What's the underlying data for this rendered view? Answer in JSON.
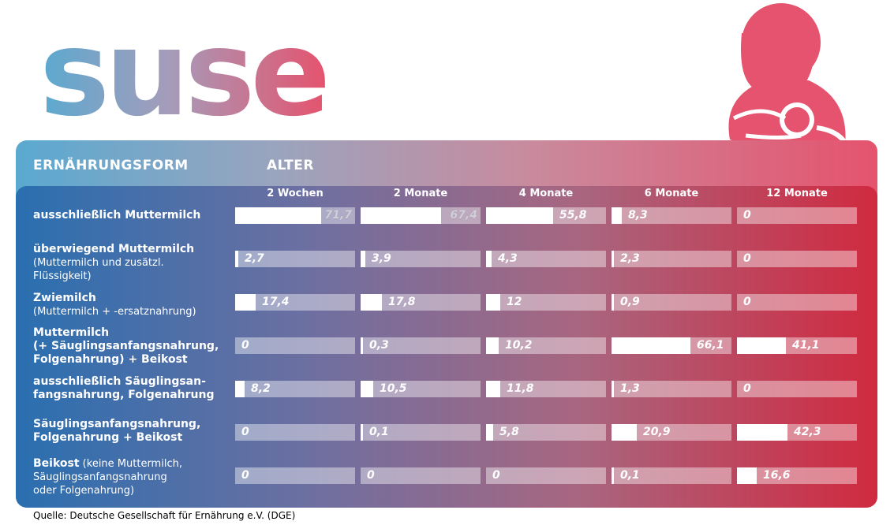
{
  "logo": {
    "text": "suse",
    "gradient_start": "#5aa9d0",
    "gradient_end": "#e5536e"
  },
  "header": {
    "row_title": "ERNÄHRUNGSFORM",
    "col_title": "ALTER"
  },
  "colors": {
    "accent": "#e5536e",
    "dark_left": "#2a6fb0",
    "dark_right": "#d02a40"
  },
  "source": "Quelle: Deutsche Gesellschaft für Ernährung e.V.  (DGE)",
  "chart_data": {
    "type": "table",
    "unit": "%",
    "columns": [
      "2 Wochen",
      "2 Monate",
      "4 Monate",
      "6 Monate",
      "12 Monate"
    ],
    "rows": [
      {
        "title": "ausschließlich Muttermilch",
        "subtitle": "",
        "values": [
          71.7,
          67.4,
          55.8,
          8.3,
          0
        ],
        "labels": [
          "71,7",
          "67,4",
          "55,8",
          "8,3",
          "0"
        ]
      },
      {
        "title": "überwiegend Muttermilch",
        "subtitle": "(Muttermilch und zusätzl. Flüssigkeit)",
        "values": [
          2.7,
          3.9,
          4.3,
          2.3,
          0
        ],
        "labels": [
          "2,7",
          "3,9",
          "4,3",
          "2,3",
          "0"
        ]
      },
      {
        "title": "Zwiemilch",
        "subtitle": "(Muttermilch + -ersatznahrung)",
        "values": [
          17.4,
          17.8,
          12,
          0.9,
          0
        ],
        "labels": [
          "17,4",
          "17,8",
          "12",
          "0,9",
          "0"
        ]
      },
      {
        "title": "Muttermilch (+ Säuglingsanfangsnahrung, Folgenahrung) + Beikost",
        "subtitle": "",
        "values": [
          0,
          0.3,
          10.2,
          66.1,
          41.1
        ],
        "labels": [
          "0",
          "0,3",
          "10,2",
          "66,1",
          "41,1"
        ]
      },
      {
        "title": "ausschließlich Säuglingsanfangsnahrung, Folgenahrung",
        "subtitle": "",
        "values": [
          8.2,
          10.5,
          11.8,
          1.3,
          0
        ],
        "labels": [
          "8,2",
          "10,5",
          "11,8",
          "1,3",
          "0"
        ]
      },
      {
        "title": "Säuglingsanfangsnahrung, Folgenahrung + Beikost",
        "subtitle": "",
        "values": [
          0,
          0.1,
          5.8,
          20.9,
          42.3
        ],
        "labels": [
          "0",
          "0,1",
          "5,8",
          "20,9",
          "42,3"
        ]
      },
      {
        "title": "Beikost",
        "subtitle": "(keine Muttermilch, Säuglingsanfangsnahrung oder Folgenahrung)",
        "values": [
          0,
          0,
          0,
          0.1,
          16.6
        ],
        "labels": [
          "0",
          "0",
          "0",
          "0,1",
          "16,6"
        ]
      }
    ]
  }
}
